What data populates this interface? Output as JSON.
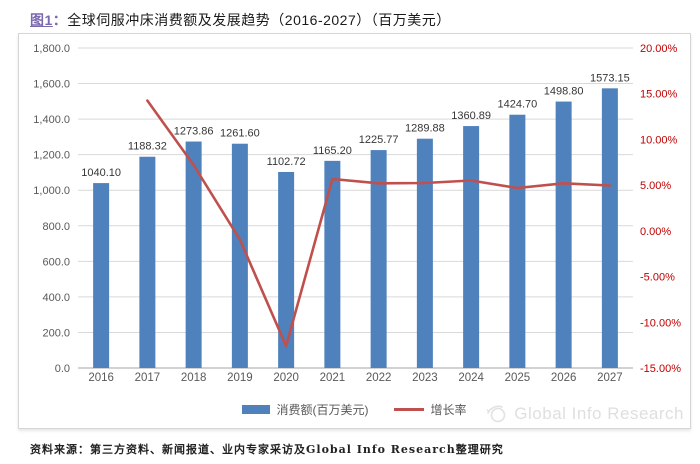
{
  "title": {
    "prefix": "图1",
    "separator": "：",
    "text": "全球伺服冲床消费额及发展趋势（2016-2027）（百万美元）"
  },
  "source_note": "资料来源：第三方资料、新闻报道、业内专家采访及Global Info Research整理研究",
  "watermark": {
    "icon": "globe-icon",
    "text": "Global Info Research"
  },
  "colors": {
    "bar": "#4F81BD",
    "line": "#C0504D",
    "left_axis_label": "#595959",
    "right_axis_label": "#C00000",
    "x_axis_label": "#595959",
    "data_label": "#363636",
    "grid": "#D9D9D9",
    "axis_line": "#A6A6A6",
    "title_prefix": "#7C68AE",
    "watermark": "#DFDFDF"
  },
  "chart_data": {
    "type": "bar",
    "subtype": "bar+line-combo",
    "categories": [
      "2016",
      "2017",
      "2018",
      "2019",
      "2020",
      "2021",
      "2022",
      "2023",
      "2024",
      "2025",
      "2026",
      "2027"
    ],
    "series": [
      {
        "name": "消费额(百万美元)",
        "type": "bar",
        "axis": "left",
        "values": [
          1040.1,
          1188.32,
          1273.86,
          1261.6,
          1102.72,
          1165.2,
          1225.77,
          1289.88,
          1360.89,
          1424.7,
          1498.8,
          1573.15
        ]
      },
      {
        "name": "增长率",
        "type": "line",
        "axis": "right",
        "values": [
          null,
          14.25,
          7.2,
          -0.96,
          -12.59,
          5.67,
          5.2,
          5.23,
          5.51,
          4.69,
          5.2,
          4.96
        ]
      }
    ],
    "left_axis": {
      "min": 0,
      "max": 1800,
      "step": 200,
      "tick_labels": [
        "1,800.0",
        "1,600.0",
        "1,400.0",
        "1,200.0",
        "1,000.0",
        "800.0",
        "600.0",
        "400.0",
        "200.0",
        "0.0"
      ]
    },
    "right_axis": {
      "min": -15,
      "max": 20,
      "step": 5,
      "tick_labels": [
        "20.00%",
        "15.00%",
        "10.00%",
        "5.00%",
        "0.00%",
        "-5.00%",
        "-10.00%",
        "-15.00%"
      ]
    },
    "grid": true,
    "legend_position": "bottom",
    "legend": [
      {
        "label": "消费额(百万美元)",
        "swatch": "bar"
      },
      {
        "label": "增长率",
        "swatch": "line"
      }
    ],
    "data_labels": [
      "1040.10",
      "1188.32",
      "1273.86",
      "1261.60",
      "1102.72",
      "1165.20",
      "1225.77",
      "1289.88",
      "1360.89",
      "1424.70",
      "1498.80",
      "1573.15"
    ]
  }
}
